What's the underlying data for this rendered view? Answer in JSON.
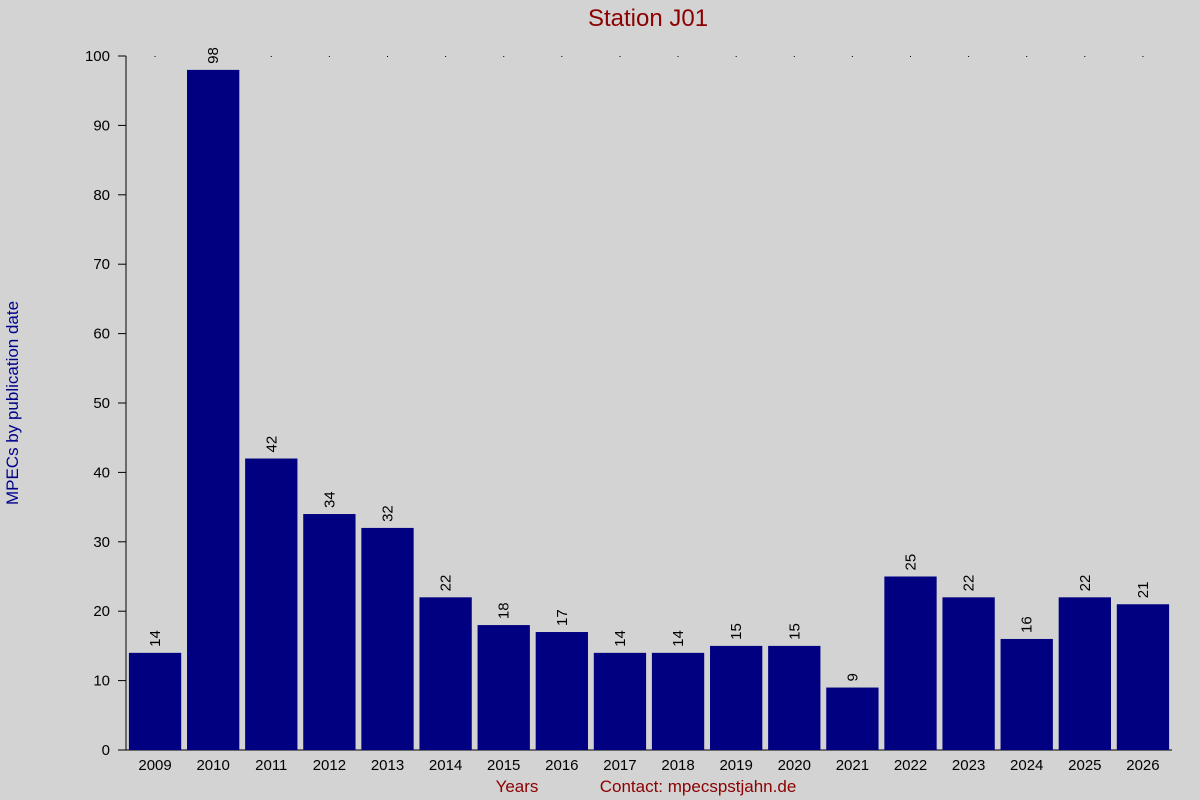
{
  "chart_data": {
    "type": "bar",
    "title": "Station J01",
    "ylabel": "MPECs by publication date",
    "xlabel": "Years",
    "annotation": "Contact: mpecspstjahn.de",
    "categories": [
      "2009",
      "2010",
      "2011",
      "2012",
      "2013",
      "2014",
      "2015",
      "2016",
      "2017",
      "2018",
      "2019",
      "2020",
      "2021",
      "2022",
      "2023",
      "2024",
      "2025",
      "2026"
    ],
    "values": [
      14,
      98,
      42,
      34,
      32,
      22,
      18,
      17,
      14,
      14,
      15,
      15,
      9,
      25,
      22,
      16,
      22,
      21
    ],
    "color": "#000080",
    "ylim": [
      0,
      100
    ],
    "yticks": [
      0,
      10,
      20,
      30,
      40,
      50,
      60,
      70,
      80,
      90,
      100
    ]
  }
}
